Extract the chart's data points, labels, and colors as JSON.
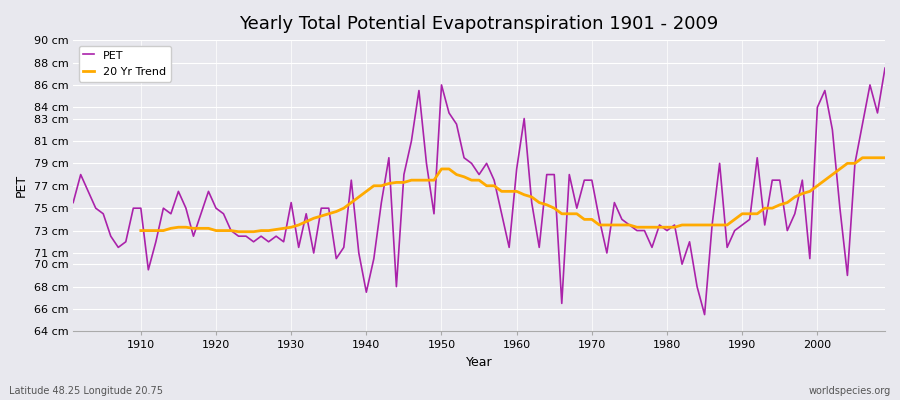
{
  "title": "Yearly Total Potential Evapotranspiration 1901 - 2009",
  "xlabel": "Year",
  "ylabel": "PET",
  "subtitle_left": "Latitude 48.25 Longitude 20.75",
  "subtitle_right": "worldspecies.org",
  "pet_color": "#aa22aa",
  "trend_color": "#ffaa00",
  "bg_color": "#e8e8ee",
  "grid_color": "#ffffff",
  "years": [
    1901,
    1902,
    1903,
    1904,
    1905,
    1906,
    1907,
    1908,
    1909,
    1910,
    1911,
    1912,
    1913,
    1914,
    1915,
    1916,
    1917,
    1918,
    1919,
    1920,
    1921,
    1922,
    1923,
    1924,
    1925,
    1926,
    1927,
    1928,
    1929,
    1930,
    1931,
    1932,
    1933,
    1934,
    1935,
    1936,
    1937,
    1938,
    1939,
    1940,
    1941,
    1942,
    1943,
    1944,
    1945,
    1946,
    1947,
    1948,
    1949,
    1950,
    1951,
    1952,
    1953,
    1954,
    1955,
    1956,
    1957,
    1958,
    1959,
    1960,
    1961,
    1962,
    1963,
    1964,
    1965,
    1966,
    1967,
    1968,
    1969,
    1970,
    1971,
    1972,
    1973,
    1974,
    1975,
    1976,
    1977,
    1978,
    1979,
    1980,
    1981,
    1982,
    1983,
    1984,
    1985,
    1986,
    1987,
    1988,
    1989,
    1990,
    1991,
    1992,
    1993,
    1994,
    1995,
    1996,
    1997,
    1998,
    1999,
    2000,
    2001,
    2002,
    2003,
    2004,
    2005,
    2006,
    2007,
    2008,
    2009
  ],
  "pet_values": [
    75.5,
    78.0,
    76.5,
    75.0,
    74.5,
    72.5,
    71.5,
    72.0,
    75.0,
    75.0,
    69.5,
    72.0,
    75.0,
    74.5,
    76.5,
    75.0,
    72.5,
    74.5,
    76.5,
    75.0,
    74.5,
    73.0,
    72.5,
    72.5,
    72.0,
    72.5,
    72.0,
    72.5,
    72.0,
    75.5,
    71.5,
    74.5,
    71.0,
    75.0,
    75.0,
    70.5,
    71.5,
    77.5,
    71.0,
    67.5,
    70.5,
    75.5,
    79.5,
    68.0,
    78.0,
    81.0,
    85.5,
    79.0,
    74.5,
    86.0,
    83.5,
    82.5,
    79.5,
    79.0,
    78.0,
    79.0,
    77.5,
    74.5,
    71.5,
    78.5,
    83.0,
    75.5,
    71.5,
    78.0,
    78.0,
    66.5,
    78.0,
    75.0,
    77.5,
    77.5,
    74.0,
    71.0,
    75.5,
    74.0,
    73.5,
    73.0,
    73.0,
    71.5,
    73.5,
    73.0,
    73.5,
    70.0,
    72.0,
    68.0,
    65.5,
    73.5,
    79.0,
    71.5,
    73.0,
    73.5,
    74.0,
    79.5,
    73.5,
    77.5,
    77.5,
    73.0,
    74.5,
    77.5,
    70.5,
    84.0,
    85.5,
    82.0,
    75.0,
    69.0,
    79.0,
    82.5,
    86.0,
    83.5,
    87.5
  ],
  "trend_years": [
    1910,
    1911,
    1912,
    1913,
    1914,
    1915,
    1916,
    1917,
    1918,
    1919,
    1920,
    1921,
    1922,
    1923,
    1924,
    1925,
    1926,
    1927,
    1928,
    1929,
    1930,
    1931,
    1932,
    1933,
    1934,
    1935,
    1936,
    1937,
    1938,
    1939,
    1940,
    1941,
    1942,
    1943,
    1944,
    1945,
    1946,
    1947,
    1948,
    1949,
    1950,
    1951,
    1952,
    1953,
    1954,
    1955,
    1956,
    1957,
    1958,
    1959,
    1960,
    1961,
    1962,
    1963,
    1964,
    1965,
    1966,
    1967,
    1968,
    1969,
    1970,
    1971,
    1972,
    1973,
    1974,
    1975,
    1976,
    1977,
    1978,
    1979,
    1980,
    1981,
    1982,
    1983,
    1984,
    1985,
    1986,
    1987,
    1988,
    1989,
    1990,
    1991,
    1992,
    1993,
    1994,
    1995,
    1996,
    1997,
    1998,
    1999,
    2000,
    2001,
    2002,
    2003,
    2004,
    2005,
    2006,
    2007,
    2008,
    2009
  ],
  "trend_values": [
    73.0,
    73.0,
    73.0,
    73.0,
    73.2,
    73.3,
    73.3,
    73.2,
    73.2,
    73.2,
    73.0,
    73.0,
    73.0,
    72.9,
    72.9,
    72.9,
    73.0,
    73.0,
    73.1,
    73.2,
    73.3,
    73.5,
    73.8,
    74.1,
    74.3,
    74.5,
    74.7,
    75.0,
    75.5,
    76.0,
    76.5,
    77.0,
    77.0,
    77.2,
    77.3,
    77.3,
    77.5,
    77.5,
    77.5,
    77.5,
    78.5,
    78.5,
    78.0,
    77.8,
    77.5,
    77.5,
    77.0,
    77.0,
    76.5,
    76.5,
    76.5,
    76.2,
    76.0,
    75.5,
    75.3,
    75.0,
    74.5,
    74.5,
    74.5,
    74.0,
    74.0,
    73.5,
    73.5,
    73.5,
    73.5,
    73.5,
    73.3,
    73.3,
    73.3,
    73.3,
    73.3,
    73.3,
    73.5,
    73.5,
    73.5,
    73.5,
    73.5,
    73.5,
    73.5,
    74.0,
    74.5,
    74.5,
    74.5,
    75.0,
    75.0,
    75.3,
    75.5,
    76.0,
    76.3,
    76.5,
    77.0,
    77.5,
    78.0,
    78.5,
    79.0,
    79.0,
    79.5,
    79.5,
    79.5,
    79.5
  ],
  "yticks": [
    64,
    66,
    68,
    70,
    71,
    73,
    75,
    77,
    79,
    81,
    83,
    84,
    86,
    88,
    90
  ],
  "ylim": [
    64,
    90
  ],
  "xlim": [
    1901,
    2009
  ]
}
